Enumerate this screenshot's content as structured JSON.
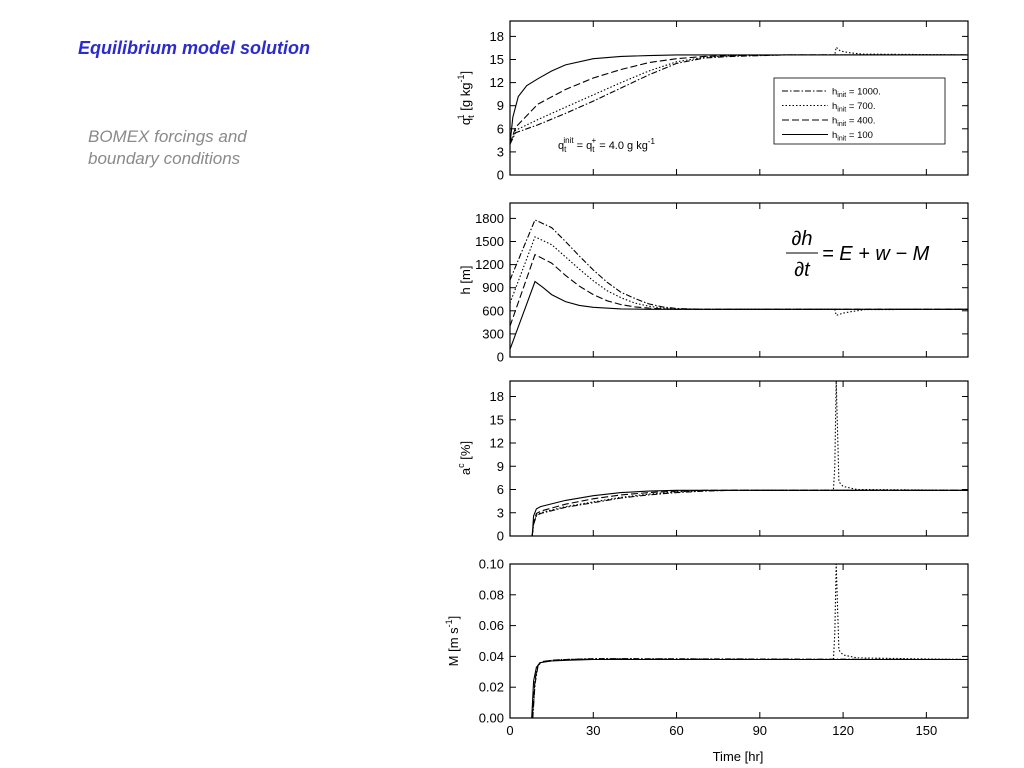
{
  "slide": {
    "title": "Equilibrium model solution",
    "subtitle_line1": "BOMEX forcings and",
    "subtitle_line2": "boundary conditions"
  },
  "chart_data": [
    {
      "type": "line",
      "ylabel": "q_t^1 [g kg^-1]",
      "ylim": [
        0,
        20
      ],
      "yticks": [
        0,
        3,
        6,
        9,
        12,
        15,
        18
      ],
      "ytick_labels": [
        "0",
        "3",
        "6",
        "9",
        "12",
        "15",
        "18"
      ],
      "xlim": [
        0,
        165
      ],
      "legend_position": "right",
      "annotation": "q_t^init = q_t^+ = 4.0 g kg^-1",
      "series": [
        {
          "name": "h_init = 1000.",
          "style": "dashdot",
          "x": [
            0,
            2,
            10,
            20,
            30,
            40,
            50,
            60,
            70,
            80,
            100,
            165
          ],
          "y": [
            4.0,
            5.5,
            6.5,
            8.0,
            9.6,
            11.3,
            13.0,
            14.5,
            15.2,
            15.4,
            15.6,
            15.6
          ]
        },
        {
          "name": "h_init = 700.",
          "style": "dotted",
          "x": [
            0,
            2,
            10,
            20,
            30,
            40,
            50,
            60,
            70,
            80,
            100,
            117,
            117.5,
            119,
            122,
            127,
            165
          ],
          "y": [
            4.0,
            5.8,
            7.2,
            8.8,
            10.4,
            12.0,
            13.5,
            14.7,
            15.3,
            15.5,
            15.6,
            15.6,
            16.6,
            16.1,
            15.9,
            15.7,
            15.6
          ]
        },
        {
          "name": "h_init = 400.",
          "style": "dashed",
          "x": [
            0,
            2,
            10,
            20,
            30,
            40,
            50,
            60,
            70,
            80,
            100,
            165
          ],
          "y": [
            4.0,
            6.2,
            9.2,
            11.1,
            12.6,
            13.7,
            14.6,
            15.1,
            15.4,
            15.5,
            15.6,
            15.6
          ]
        },
        {
          "name": "h_init = 100",
          "style": "solid",
          "x": [
            0,
            1,
            3,
            6,
            10,
            15,
            20,
            30,
            40,
            50,
            60,
            80,
            165
          ],
          "y": [
            4.0,
            7.5,
            10.2,
            11.6,
            12.5,
            13.5,
            14.3,
            15.1,
            15.4,
            15.5,
            15.6,
            15.6,
            15.6
          ]
        }
      ]
    },
    {
      "type": "line",
      "ylabel": "h [m]",
      "ylim": [
        0,
        2000
      ],
      "yticks": [
        0,
        300,
        600,
        900,
        1200,
        1500,
        1800
      ],
      "ytick_labels": [
        "0",
        "300",
        "600",
        "900",
        "1200",
        "1500",
        "1800"
      ],
      "xlim": [
        0,
        165
      ],
      "annotation": "∂h/∂t = E + w − M",
      "series": [
        {
          "name": "h_init = 1000.",
          "style": "dashdot",
          "x": [
            0,
            9,
            15,
            20,
            25,
            30,
            35,
            40,
            45,
            50,
            55,
            60,
            70,
            165
          ],
          "y": [
            1000,
            1780,
            1680,
            1500,
            1310,
            1130,
            970,
            840,
            760,
            690,
            650,
            630,
            620,
            620
          ]
        },
        {
          "name": "h_init = 700.",
          "style": "dotted",
          "x": [
            0,
            9,
            15,
            20,
            25,
            30,
            35,
            40,
            45,
            50,
            55,
            60,
            70,
            117,
            117.5,
            120,
            123,
            128,
            165
          ],
          "y": [
            700,
            1560,
            1460,
            1300,
            1140,
            990,
            860,
            770,
            700,
            660,
            635,
            625,
            620,
            620,
            540,
            570,
            590,
            615,
            620
          ]
        },
        {
          "name": "h_init = 400.",
          "style": "dashed",
          "x": [
            0,
            9,
            15,
            20,
            25,
            30,
            35,
            40,
            45,
            50,
            55,
            60,
            70,
            165
          ],
          "y": [
            400,
            1330,
            1220,
            1060,
            920,
            810,
            730,
            680,
            650,
            635,
            625,
            620,
            620,
            620
          ]
        },
        {
          "name": "h_init = 100",
          "style": "solid",
          "x": [
            0,
            9,
            12,
            15,
            20,
            25,
            30,
            40,
            50,
            60,
            165
          ],
          "y": [
            100,
            980,
            900,
            810,
            720,
            670,
            645,
            625,
            620,
            620,
            620
          ]
        }
      ]
    },
    {
      "type": "line",
      "ylabel": "a^c [%]",
      "ylim": [
        0,
        20
      ],
      "yticks": [
        0,
        3,
        6,
        9,
        12,
        15,
        18
      ],
      "ytick_labels": [
        "0",
        "3",
        "6",
        "9",
        "12",
        "15",
        "18"
      ],
      "xlim": [
        0,
        165
      ],
      "series": [
        {
          "name": "h_init = 1000.",
          "style": "dashdot",
          "x": [
            8,
            8.5,
            9.5,
            11,
            20,
            30,
            40,
            50,
            60,
            70,
            80,
            165
          ],
          "y": [
            0,
            1.5,
            2.6,
            2.9,
            3.7,
            4.3,
            4.9,
            5.3,
            5.6,
            5.8,
            5.9,
            5.9
          ]
        },
        {
          "name": "h_init = 700.",
          "style": "dotted",
          "x": [
            8,
            8.5,
            9.5,
            11,
            20,
            30,
            40,
            50,
            60,
            70,
            80,
            116.5,
            117,
            117.5,
            118.5,
            120,
            125,
            165
          ],
          "y": [
            0,
            1.6,
            2.7,
            3.0,
            3.8,
            4.4,
            5.0,
            5.4,
            5.7,
            5.85,
            5.9,
            5.9,
            9.0,
            20,
            7.0,
            6.4,
            6.0,
            5.9
          ]
        },
        {
          "name": "h_init = 400.",
          "style": "dashed",
          "x": [
            8,
            8.5,
            9.5,
            11,
            20,
            30,
            40,
            50,
            60,
            70,
            165
          ],
          "y": [
            0,
            1.8,
            2.9,
            3.2,
            4.1,
            4.8,
            5.3,
            5.6,
            5.8,
            5.9,
            5.9
          ]
        },
        {
          "name": "h_init = 100",
          "style": "solid",
          "x": [
            8,
            8.5,
            9.5,
            11,
            20,
            30,
            40,
            50,
            60,
            165
          ],
          "y": [
            0,
            2.6,
            3.5,
            3.8,
            4.6,
            5.2,
            5.6,
            5.8,
            5.9,
            5.9
          ]
        }
      ]
    },
    {
      "type": "line",
      "ylabel": "M [m s^-1]",
      "xlabel": "Time [hr]",
      "ylim": [
        0,
        0.1
      ],
      "yticks": [
        0,
        0.02,
        0.04,
        0.06,
        0.08,
        0.1
      ],
      "ytick_labels": [
        "0.00",
        "0.02",
        "0.04",
        "0.06",
        "0.08",
        "0.10"
      ],
      "xlim": [
        0,
        165
      ],
      "xticks": [
        0,
        30,
        60,
        90,
        120,
        150
      ],
      "xtick_labels": [
        "0",
        "30",
        "60",
        "90",
        "120",
        "150"
      ],
      "series": [
        {
          "name": "h_init = 1000.",
          "style": "dashdot",
          "x": [
            8.2,
            9,
            10,
            11,
            15,
            20,
            30,
            40,
            165
          ],
          "y": [
            0,
            0.022,
            0.033,
            0.036,
            0.0375,
            0.038,
            0.0385,
            0.0385,
            0.038
          ]
        },
        {
          "name": "h_init = 700.",
          "style": "dotted",
          "x": [
            8.1,
            9,
            10,
            11,
            15,
            20,
            30,
            116.5,
            117,
            117.5,
            118.5,
            120,
            125,
            165
          ],
          "y": [
            0,
            0.023,
            0.034,
            0.036,
            0.0375,
            0.038,
            0.0385,
            0.038,
            0.055,
            0.1,
            0.044,
            0.041,
            0.039,
            0.038
          ]
        },
        {
          "name": "h_init = 400.",
          "style": "dashed",
          "x": [
            8,
            9,
            10,
            11,
            15,
            20,
            30,
            165
          ],
          "y": [
            0,
            0.025,
            0.034,
            0.0365,
            0.0375,
            0.038,
            0.038,
            0.038
          ]
        },
        {
          "name": "h_init = 100",
          "style": "solid",
          "x": [
            7.8,
            8.5,
            9.5,
            11,
            15,
            20,
            30,
            165
          ],
          "y": [
            0,
            0.024,
            0.033,
            0.036,
            0.037,
            0.0375,
            0.038,
            0.038
          ]
        }
      ]
    }
  ]
}
